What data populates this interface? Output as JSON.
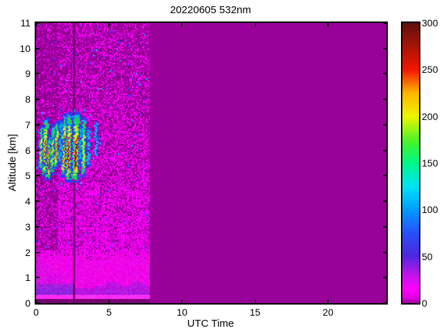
{
  "figure": {
    "title": "20220605 532nm",
    "xlabel": "UTC Time",
    "ylabel": "Altitude [km]"
  },
  "axes": {
    "xlim": [
      0,
      24
    ],
    "ylim": [
      0,
      11
    ],
    "xticks": [
      0,
      5,
      10,
      15,
      20
    ],
    "yticks": [
      0,
      1,
      2,
      3,
      4,
      5,
      6,
      7,
      8,
      9,
      10,
      11
    ],
    "axis_color": "#000000"
  },
  "colorbar": {
    "min": 0,
    "max": 300,
    "ticks": [
      0,
      50,
      100,
      150,
      200,
      250,
      300
    ],
    "gradient": [
      [
        0,
        "#a000a0"
      ],
      [
        6,
        "#e000e0"
      ],
      [
        14,
        "#ff00ff"
      ],
      [
        30,
        "#c414e8"
      ],
      [
        50,
        "#5026e0"
      ],
      [
        75,
        "#2850f8"
      ],
      [
        100,
        "#009cff"
      ],
      [
        125,
        "#00e4f4"
      ],
      [
        150,
        "#00f788"
      ],
      [
        172,
        "#42f32a"
      ],
      [
        200,
        "#eef500"
      ],
      [
        225,
        "#ffb400"
      ],
      [
        250,
        "#f21400"
      ],
      [
        275,
        "#a81408"
      ],
      [
        300,
        "#5e1010"
      ]
    ]
  },
  "chart_data": {
    "type": "heatmap",
    "title": "20220605 532nm",
    "xlabel": "UTC Time",
    "ylabel": "Altitude [km]",
    "xlim": [
      0,
      24
    ],
    "ylim": [
      0,
      11
    ],
    "clim": [
      0,
      300
    ],
    "grid": false,
    "legend": "colorbar-right",
    "measurement_end_utc": 7.72,
    "gap_utc": 2.58,
    "background_color": "#990099",
    "gap_color": "#740070",
    "noise": {
      "bright_colors": [
        "#ff00ff",
        "#ea00ea",
        "#cf00cf"
      ],
      "dark_colors": [
        "#990099",
        "#8a008a",
        "#ad00ad"
      ],
      "blue_speck_color": "#4343ff",
      "cyan_speck_color": "#00b0f0",
      "brightness_by_altitude": [
        {
          "above": 9.0,
          "p": 0.36
        },
        {
          "above": 7.6,
          "p": 0.42
        },
        {
          "above": 6.0,
          "p": 0.5
        },
        {
          "above": 4.6,
          "p": 0.58
        },
        {
          "above": 3.5,
          "p": 0.72
        },
        {
          "above": 2.1,
          "p": 0.8
        }
      ],
      "dark_left_until_utc": 1.5,
      "dark_left_factor": 0.45
    },
    "boundary_layer": {
      "surface_dark_color": "#790074",
      "surface_dark_top_km": 0.2,
      "bright_line_color": "#ff2cf4",
      "bright_line_top_km": 0.33,
      "blue_band_color": "#5b35d8",
      "blue_band_strong_until_utc": 2.55,
      "pink_color": "#ee04e8",
      "pink_top_km": 1.65,
      "fade_top_km": 2.15,
      "left_haze_color": "#7a35cc",
      "left_haze_until_utc": 1.7
    },
    "cloud_streaks": {
      "comment": "fall streaks: [utc_top, alt_top_km, utc_bottom, alt_bottom_km, width_px, intensity_1to5]",
      "layer_colors": {
        "blue": "#2740ee",
        "cyan": "#00c0f0",
        "green": "#21dd33",
        "yellow": "#f3f300",
        "red": "#ee2200",
        "dark_red": "#7a1410"
      },
      "streaks": [
        [
          0.45,
          7.0,
          0.32,
          5.3,
          5,
          3
        ],
        [
          0.72,
          7.3,
          0.58,
          5.0,
          6,
          4
        ],
        [
          0.95,
          6.6,
          0.85,
          4.9,
          6,
          5
        ],
        [
          1.18,
          7.0,
          1.1,
          5.1,
          5,
          3
        ],
        [
          1.45,
          7.15,
          1.35,
          5.3,
          5,
          4
        ],
        [
          1.75,
          7.2,
          1.62,
          5.5,
          4,
          2
        ],
        [
          2.0,
          7.45,
          1.88,
          5.0,
          6,
          4
        ],
        [
          2.3,
          7.5,
          2.18,
          4.8,
          7,
          5
        ],
        [
          2.78,
          7.5,
          2.66,
          4.8,
          9,
          5
        ],
        [
          3.08,
          7.0,
          3.0,
          5.6,
          4,
          2
        ],
        [
          3.3,
          7.3,
          3.22,
          5.0,
          5,
          3
        ],
        [
          3.62,
          6.9,
          3.55,
          5.4,
          4,
          2
        ],
        [
          4.15,
          7.15,
          4.1,
          5.8,
          3,
          2
        ]
      ],
      "specks": [
        [
          3.3,
          7.62
        ],
        [
          2.6,
          7.6
        ],
        [
          0.4,
          7.5
        ],
        [
          4.35,
          6.3
        ],
        [
          3.05,
          4.75
        ],
        [
          1.7,
          4.72
        ]
      ]
    }
  }
}
